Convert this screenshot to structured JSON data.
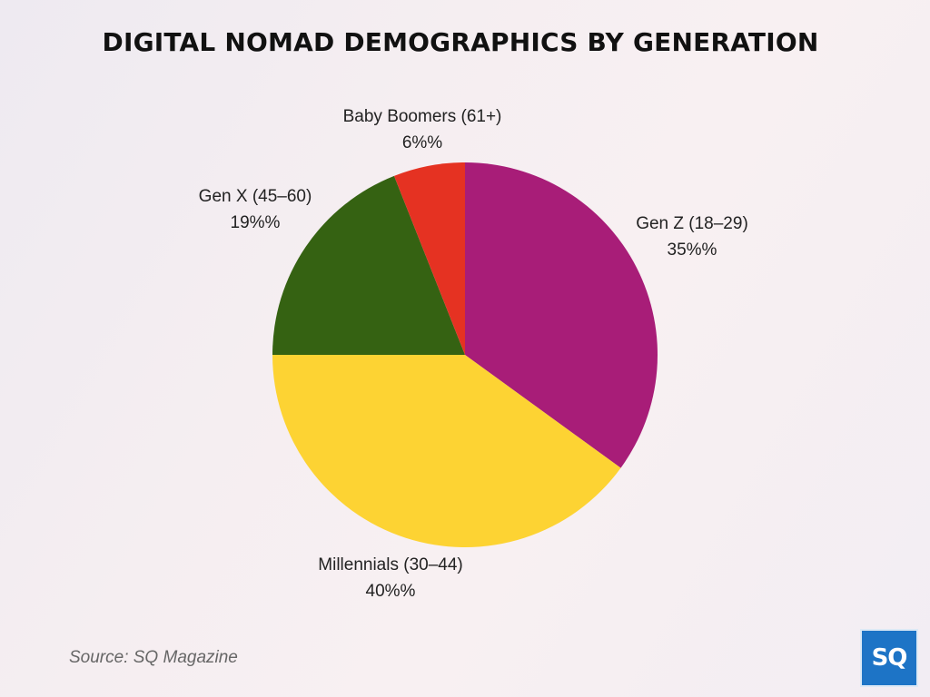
{
  "chart_data": {
    "type": "pie",
    "title": "DIGITAL NOMAD DEMOGRAPHICS BY GENERATION",
    "slices": [
      {
        "label": "Gen Z (18–29)",
        "value": 35,
        "display": "35%%",
        "color": "#a81d78"
      },
      {
        "label": "Millennials (30–44)",
        "value": 40,
        "display": "40%%",
        "color": "#fdd333"
      },
      {
        "label": "Gen X (45–60)",
        "value": 19,
        "display": "19%%",
        "color": "#356212"
      },
      {
        "label": "Baby Boomers (61+)",
        "value": 6,
        "display": "6%%",
        "color": "#e53222"
      }
    ]
  },
  "source": "Source: SQ Magazine",
  "logo_text": "SQ"
}
